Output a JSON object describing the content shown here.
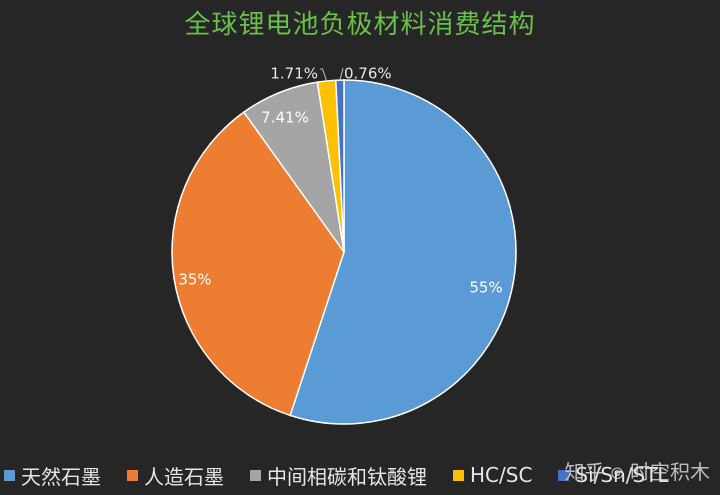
{
  "chart_data": {
    "type": "pie",
    "title": "全球锂电池负极材料消费结构",
    "slices": [
      {
        "name": "天然石墨",
        "value": 55,
        "label": "55%",
        "color": "#5b9bd5"
      },
      {
        "name": "人造石墨",
        "value": 35,
        "label": "35%",
        "color": "#ed7d31"
      },
      {
        "name": "中间相碳和钛酸锂",
        "value": 7.41,
        "label": "7.41%",
        "color": "#a5a5a5"
      },
      {
        "name": "HC/SC",
        "value": 1.71,
        "label": "1.71%",
        "color": "#ffc000"
      },
      {
        "name": "Si/Sn/STL",
        "value": 0.76,
        "label": "0.76%",
        "color": "#4472c4"
      }
    ],
    "legend_position": "bottom"
  },
  "watermark": {
    "site": "知乎",
    "author": "时空积木"
  }
}
